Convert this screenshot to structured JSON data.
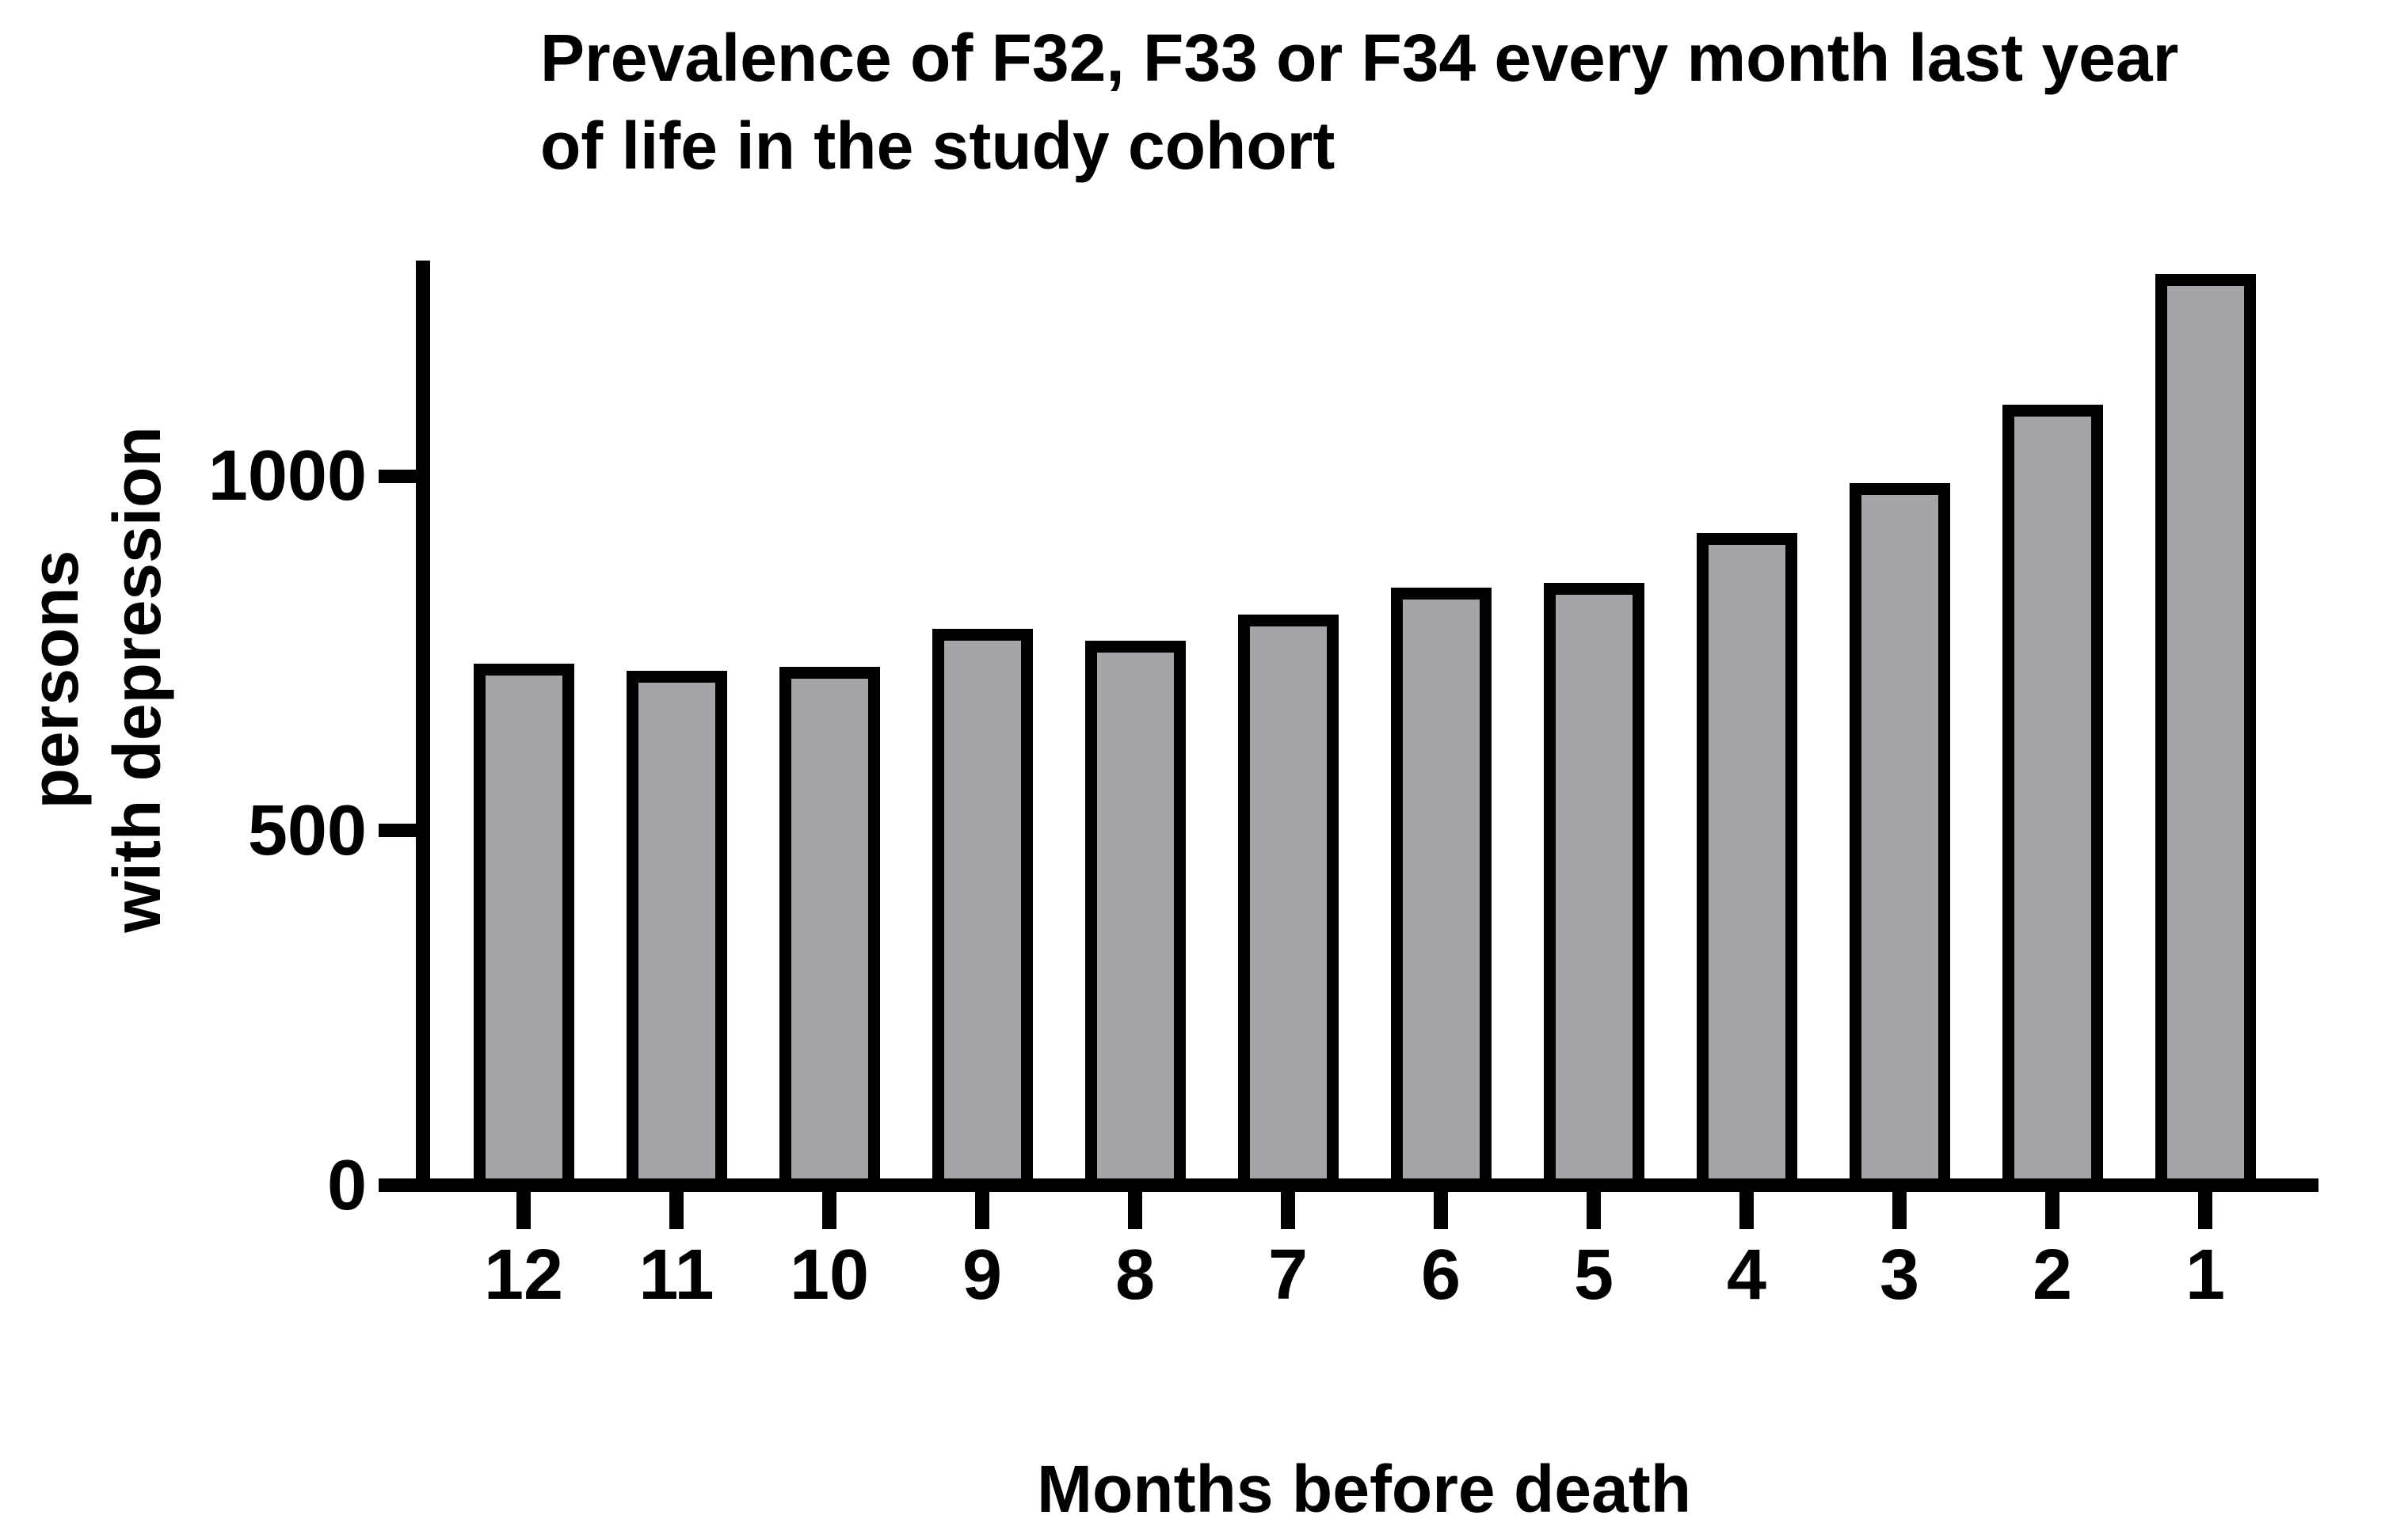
{
  "title": {
    "line1": "Prevalence of F32, F33 or F34 every month last year",
    "line2": "of life in the study cohort"
  },
  "y_axis": {
    "label_line1": "persons",
    "label_line2": "with depression",
    "tick_labels": [
      "1000",
      "500",
      "0"
    ]
  },
  "x_axis": {
    "title": "Months before death"
  },
  "colors": {
    "bar_fill": "#A5A4A8",
    "stroke": "#000000",
    "background": "#FFFFFF"
  },
  "chart_data": {
    "type": "bar",
    "title": "Prevalence of F32, F33 or F34 every month last year of life in the study cohort",
    "xlabel": "Months before death",
    "ylabel": "persons with depression",
    "categories": [
      "12",
      "11",
      "10",
      "9",
      "8",
      "7",
      "6",
      "5",
      "4",
      "3",
      "2",
      "1"
    ],
    "values": [
      735,
      725,
      731,
      785,
      768,
      805,
      842,
      849,
      920,
      990,
      1100,
      1285
    ],
    "y_ticks": [
      1000,
      500,
      0
    ],
    "ylim": [
      0,
      1305
    ],
    "grid": false,
    "legend": "none",
    "bar_fill": "#A5A4A8",
    "bar_outline": "#000000"
  }
}
